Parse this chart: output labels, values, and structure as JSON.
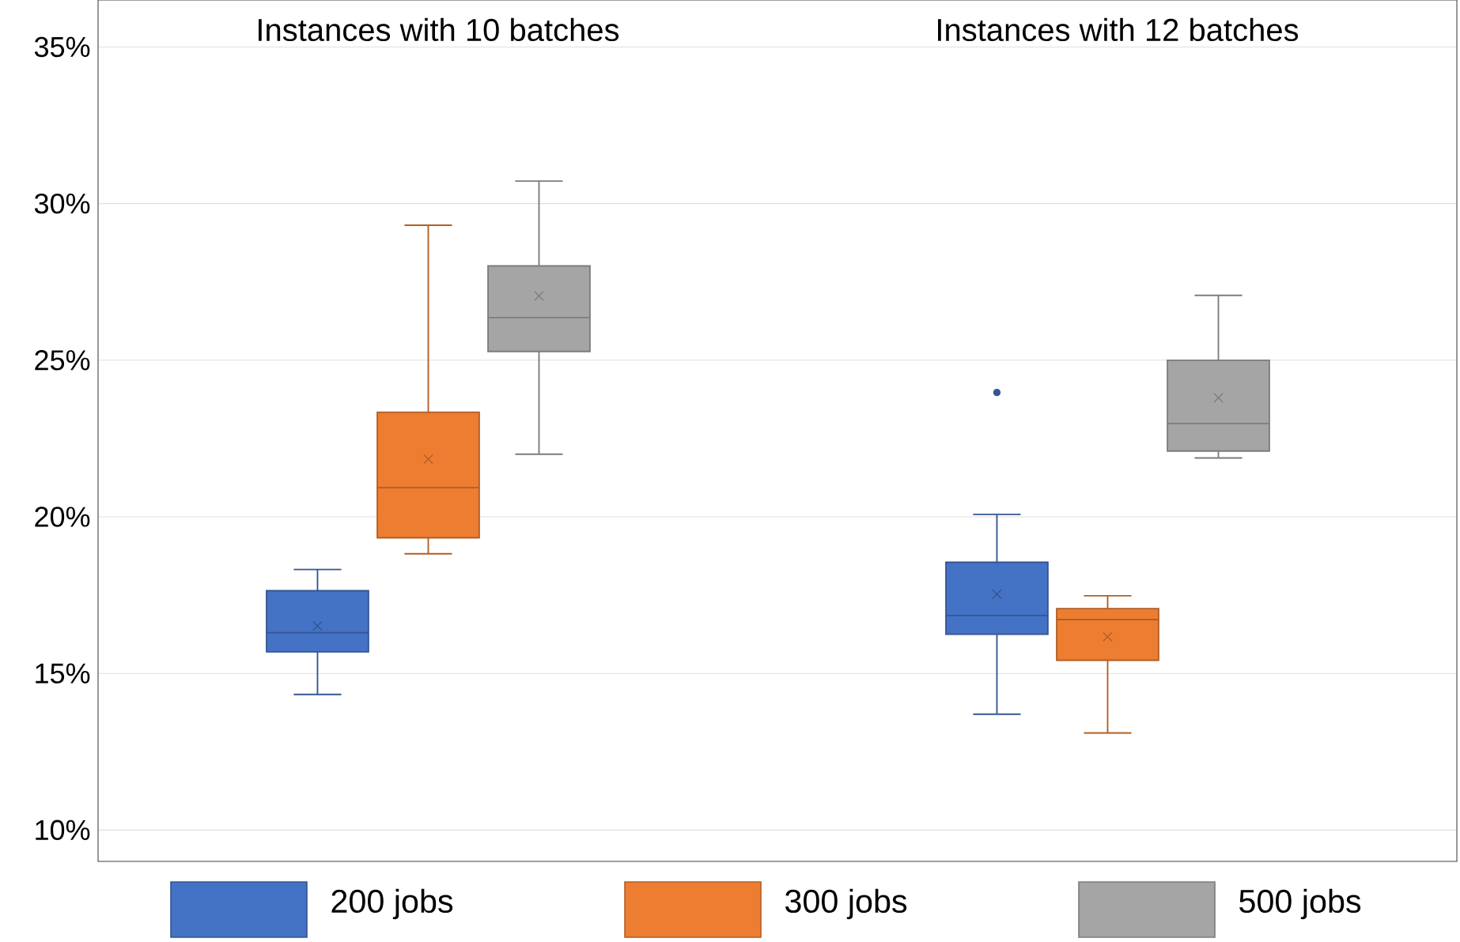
{
  "chart_data": {
    "type": "box",
    "categories": [
      "Instances with 10 batches",
      "Instances with 12 batches"
    ],
    "ylim": [
      9,
      36.5
    ],
    "yticks": [
      {
        "value": 10,
        "label": "10%"
      },
      {
        "value": 15,
        "label": "15%"
      },
      {
        "value": 20,
        "label": "20%"
      },
      {
        "value": 25,
        "label": "25%"
      },
      {
        "value": 30,
        "label": "30%"
      },
      {
        "value": 35,
        "label": "35%"
      }
    ],
    "grid": "y",
    "legend": "bottom",
    "series": [
      {
        "name": "200 jobs",
        "color": "#4472c4",
        "boxes": [
          {
            "low": 14.33,
            "q1": 15.69,
            "median": 16.3,
            "q3": 17.64,
            "high": 18.32,
            "mean": 16.52
          },
          {
            "low": 13.7,
            "q1": 16.25,
            "median": 16.85,
            "q3": 18.55,
            "high": 20.08,
            "mean": 17.53,
            "outliers": [
              23.97
            ]
          }
        ]
      },
      {
        "name": "300 jobs",
        "color": "#ed7d31",
        "boxes": [
          {
            "low": 18.82,
            "q1": 19.33,
            "median": 20.93,
            "q3": 23.34,
            "high": 29.31,
            "mean": 21.84
          },
          {
            "low": 13.1,
            "q1": 15.42,
            "median": 16.72,
            "q3": 17.07,
            "high": 17.48,
            "mean": 16.17
          }
        ]
      },
      {
        "name": "500 jobs",
        "color": "#a5a5a5",
        "boxes": [
          {
            "low": 22.0,
            "q1": 25.28,
            "median": 26.36,
            "q3": 28.01,
            "high": 30.72,
            "mean": 27.05
          },
          {
            "low": 21.88,
            "q1": 22.1,
            "median": 22.98,
            "q3": 25.0,
            "high": 27.07,
            "mean": 23.8
          }
        ]
      }
    ]
  }
}
